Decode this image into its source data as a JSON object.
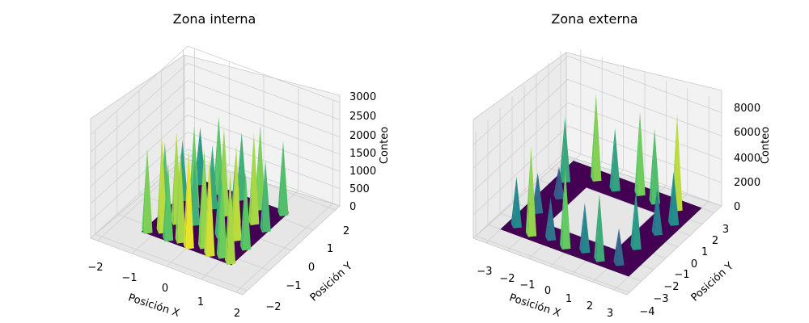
{
  "figure": {
    "colormap": [
      "#440154",
      "#3b528b",
      "#21918c",
      "#5ec962",
      "#fde725"
    ]
  },
  "chart_data": [
    {
      "type": "surface3d",
      "title": "Zona interna",
      "xlabel": "Posición X",
      "ylabel": "Posición Y",
      "zlabel": "Conteo",
      "xlim": [
        -2.2,
        2.2
      ],
      "ylim": [
        -2.2,
        2.2
      ],
      "zlim": [
        0,
        3000
      ],
      "xticks": [
        -2,
        -1,
        0,
        1,
        2
      ],
      "yticks": [
        -2,
        -1,
        0,
        1,
        2
      ],
      "zticks": [
        0,
        500,
        1000,
        1500,
        2000,
        2500,
        3000
      ],
      "tick_labels": {
        "x": [
          "−2",
          "−1",
          "0",
          "1",
          "2"
        ],
        "y": [
          "−2",
          "−1",
          "0",
          "1",
          "2"
        ],
        "z": [
          "0",
          "500",
          "1000",
          "1500",
          "2000",
          "2500",
          "3000"
        ]
      },
      "surface": {
        "base_extent": [
          -1.3,
          1.3
        ],
        "peaks": [
          {
            "x": -1.2,
            "y": -1.2,
            "z": 2400
          },
          {
            "x": -0.9,
            "y": -1.0,
            "z": 2700
          },
          {
            "x": -0.6,
            "y": -1.2,
            "z": 2200
          },
          {
            "x": -0.3,
            "y": -1.1,
            "z": 2600
          },
          {
            "x": 0.0,
            "y": -1.2,
            "z": 2900
          },
          {
            "x": 0.3,
            "y": -1.0,
            "z": 2500
          },
          {
            "x": 0.6,
            "y": -1.2,
            "z": 2800
          },
          {
            "x": 0.9,
            "y": -1.1,
            "z": 2300
          },
          {
            "x": 1.2,
            "y": -1.2,
            "z": 2600
          },
          {
            "x": -1.2,
            "y": -0.4,
            "z": 2100
          },
          {
            "x": -0.8,
            "y": -0.5,
            "z": 2600
          },
          {
            "x": -0.4,
            "y": -0.3,
            "z": 1900
          },
          {
            "x": 0.0,
            "y": -0.5,
            "z": 2400
          },
          {
            "x": 0.4,
            "y": -0.4,
            "z": 2000
          },
          {
            "x": 0.8,
            "y": -0.3,
            "z": 2700
          },
          {
            "x": 1.2,
            "y": -0.5,
            "z": 2200
          },
          {
            "x": -1.2,
            "y": 0.4,
            "z": 1700
          },
          {
            "x": -0.8,
            "y": 0.3,
            "z": 2300
          },
          {
            "x": -0.4,
            "y": 0.5,
            "z": 1800
          },
          {
            "x": 0.0,
            "y": 0.4,
            "z": 2500
          },
          {
            "x": 0.4,
            "y": 0.3,
            "z": 1900
          },
          {
            "x": 0.8,
            "y": 0.5,
            "z": 2600
          },
          {
            "x": 1.2,
            "y": 0.4,
            "z": 2000
          },
          {
            "x": -1.2,
            "y": 1.2,
            "z": 1600
          },
          {
            "x": -0.6,
            "y": 1.1,
            "z": 2200
          },
          {
            "x": 0.0,
            "y": 1.2,
            "z": 1900
          },
          {
            "x": 0.6,
            "y": 1.1,
            "z": 2400
          },
          {
            "x": 1.2,
            "y": 1.2,
            "z": 2100
          }
        ]
      }
    },
    {
      "type": "surface3d",
      "title": "Zona externa",
      "xlabel": "Posición X",
      "ylabel": "Posición Y",
      "zlabel": "Conteo",
      "xlim": [
        -3.6,
        3.6
      ],
      "ylim": [
        -4.2,
        3.6
      ],
      "zlim": [
        0,
        9000
      ],
      "xticks": [
        -3,
        -2,
        -1,
        0,
        1,
        2,
        3
      ],
      "yticks": [
        -4,
        -3,
        -2,
        -1,
        0,
        1,
        2,
        3
      ],
      "zticks": [
        0,
        2000,
        4000,
        6000,
        8000
      ],
      "tick_labels": {
        "x": [
          "−3",
          "−2",
          "−1",
          "0",
          "1",
          "2",
          "3"
        ],
        "y": [
          "−4",
          "−3",
          "−2",
          "−1",
          "0",
          "1",
          "2",
          "3"
        ],
        "z": [
          "0",
          "2000",
          "4000",
          "6000",
          "8000"
        ]
      },
      "surface": {
        "base_extent": [
          -3.0,
          3.0
        ],
        "hole_extent": [
          -1.6,
          1.6
        ],
        "peaks": [
          {
            "x": -2.6,
            "y": -2.4,
            "z": 4200
          },
          {
            "x": -1.8,
            "y": -2.6,
            "z": 7500
          },
          {
            "x": -1.0,
            "y": -2.4,
            "z": 3500
          },
          {
            "x": -0.2,
            "y": -2.6,
            "z": 6800
          },
          {
            "x": 0.6,
            "y": -2.4,
            "z": 4100
          },
          {
            "x": 1.4,
            "y": -2.6,
            "z": 5600
          },
          {
            "x": 2.2,
            "y": -2.4,
            "z": 3000
          },
          {
            "x": -2.4,
            "y": -1.0,
            "z": 3300
          },
          {
            "x": -2.2,
            "y": 0.4,
            "z": 2600
          },
          {
            "x": 2.2,
            "y": -1.0,
            "z": 4900
          },
          {
            "x": 2.4,
            "y": 0.4,
            "z": 3800
          },
          {
            "x": -2.6,
            "y": 1.6,
            "z": 5400
          },
          {
            "x": -1.6,
            "y": 2.4,
            "z": 7300
          },
          {
            "x": -0.6,
            "y": 2.2,
            "z": 5200
          },
          {
            "x": 0.4,
            "y": 2.5,
            "z": 7000
          },
          {
            "x": 1.2,
            "y": 2.3,
            "z": 6300
          },
          {
            "x": 2.2,
            "y": 2.4,
            "z": 8100
          },
          {
            "x": 2.6,
            "y": 1.4,
            "z": 4400
          }
        ]
      }
    }
  ]
}
